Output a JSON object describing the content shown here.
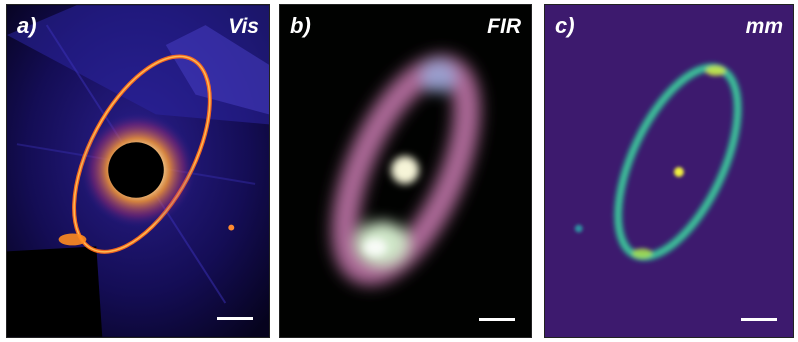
{
  "panels": [
    {
      "letter": "a)",
      "band": "Vis"
    },
    {
      "letter": "b)",
      "band": "FIR"
    },
    {
      "letter": "c)",
      "band": "mm"
    }
  ],
  "colors": {
    "vis_background": "#05031a",
    "vis_ring": "#ff6a1a",
    "fir_background": "#010201",
    "fir_ring": "#c074a8",
    "mm_background": "#3d1a6e",
    "mm_ring": "#3fc09a"
  }
}
